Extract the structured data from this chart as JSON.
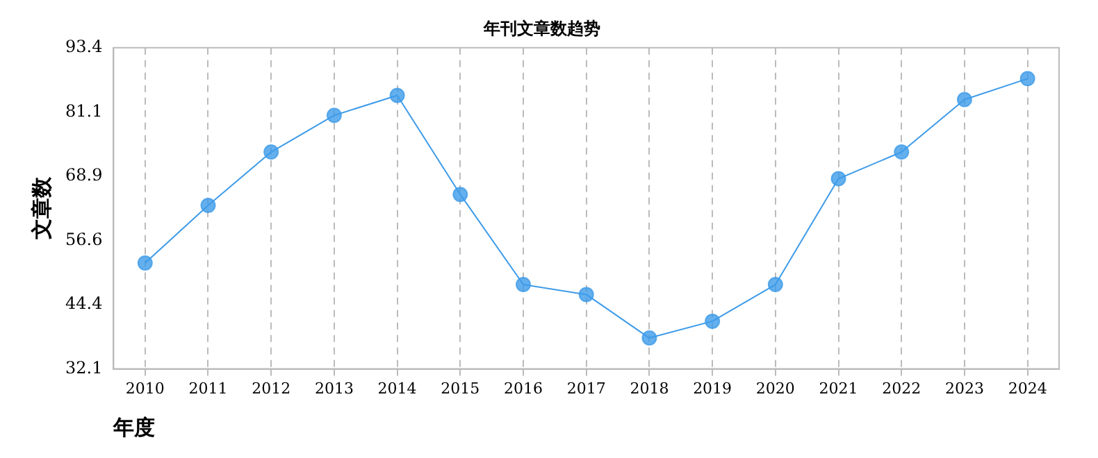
{
  "chart_data": {
    "type": "line",
    "title": "年刊文章数趋势",
    "xlabel": "年度",
    "ylabel": "文章数",
    "categories": [
      "2010",
      "2011",
      "2012",
      "2013",
      "2014",
      "2015",
      "2016",
      "2017",
      "2018",
      "2019",
      "2020",
      "2021",
      "2022",
      "2023",
      "2024"
    ],
    "series": [
      {
        "color": "#3d9be9",
        "values": [
          52.3,
          63.3,
          73.5,
          80.5,
          84.3,
          65.4,
          48.2,
          46.3,
          38.0,
          41.2,
          48.2,
          68.4,
          73.5,
          83.5,
          87.5
        ]
      }
    ],
    "ylim": [
      32.1,
      93.4
    ],
    "yticks": [
      32.1,
      44.4,
      56.6,
      68.9,
      81.1,
      93.4
    ],
    "grid": "x",
    "legend": false,
    "marker": "circle",
    "line_style": "solid"
  }
}
